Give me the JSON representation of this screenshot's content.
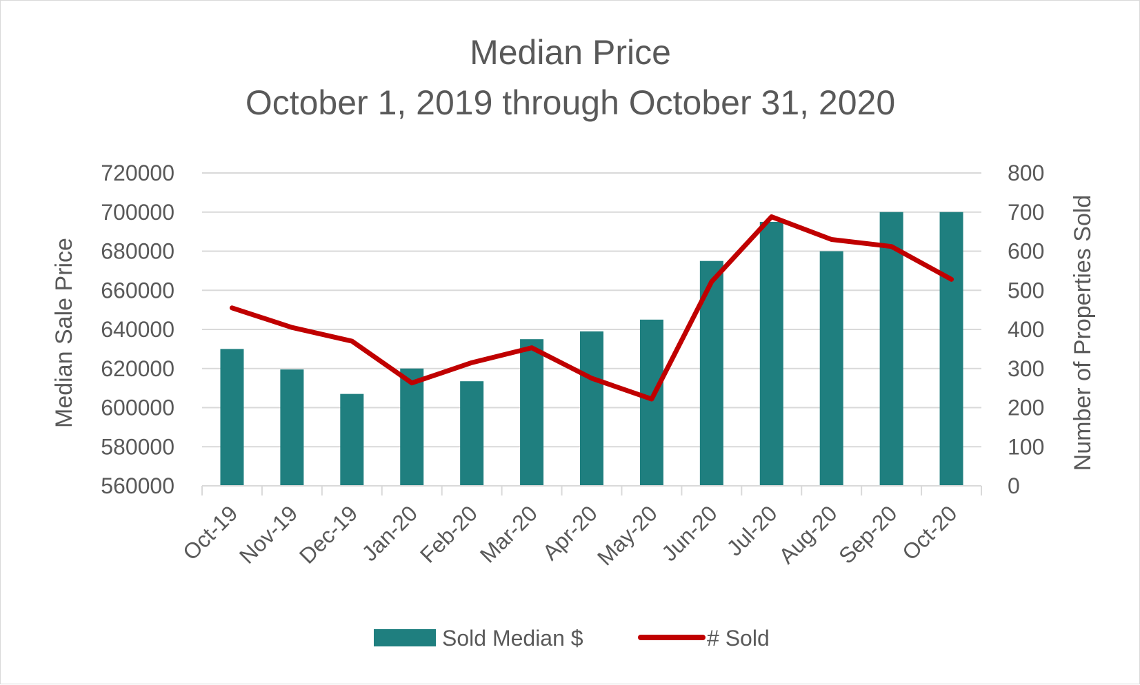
{
  "chart_data": {
    "type": "bar",
    "title": "Median Price",
    "subtitle": "October 1, 2019 through October 31, 2020",
    "categories": [
      "Oct-19",
      "Nov-19",
      "Dec-19",
      "Jan-20",
      "Feb-20",
      "Mar-20",
      "Apr-20",
      "May-20",
      "Jun-20",
      "Jul-20",
      "Aug-20",
      "Sep-20",
      "Oct-20"
    ],
    "series": [
      {
        "name": "Sold Median $",
        "type": "bar",
        "axis": "left",
        "color": "#1f7f7f",
        "values": [
          630000,
          619500,
          607000,
          620000,
          613500,
          635000,
          639000,
          645000,
          675000,
          695000,
          680000,
          700000,
          700000
        ]
      },
      {
        "name": "# Sold",
        "type": "line",
        "axis": "right",
        "color": "#c00000",
        "values": [
          455,
          405,
          370,
          263,
          315,
          353,
          275,
          222,
          522,
          688,
          630,
          612,
          528
        ]
      }
    ],
    "ylabel": "Median Sale Price",
    "ylim": [
      560000,
      720000
    ],
    "yticks": [
      "560000",
      "580000",
      "600000",
      "620000",
      "640000",
      "660000",
      "680000",
      "700000",
      "720000"
    ],
    "y2label": "Number of Properties Sold",
    "y2lim": [
      0,
      800
    ],
    "y2ticks": [
      "0",
      "100",
      "200",
      "300",
      "400",
      "500",
      "600",
      "700",
      "800"
    ],
    "grid": true,
    "legend": "bottom"
  }
}
